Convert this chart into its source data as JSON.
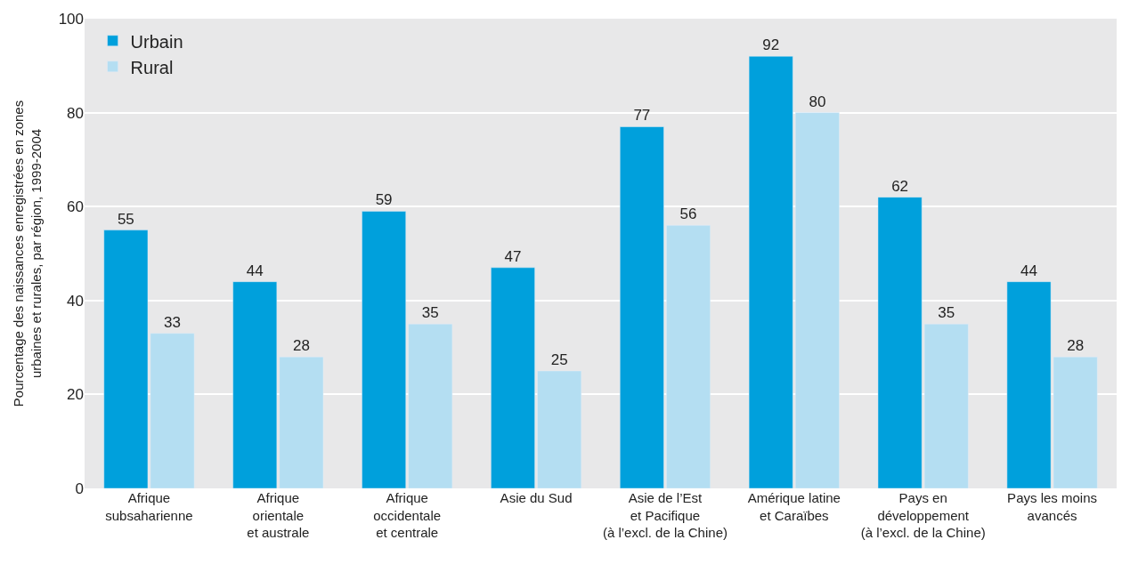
{
  "chart_data": {
    "type": "bar",
    "ylabel": "Pourcentage des naissances enregistrées en zones\nurbaines et rurales, par région, 1999-2004",
    "categories": [
      "Afrique\nsubsaharienne",
      "Afrique\norientale\net australe",
      "Afrique\noccidentale\net centrale",
      "Asie du Sud",
      "Asie de l’Est\net Pacifique\n(à l’excl. de la Chine)",
      "Amérique latine\net Caraïbes",
      "Pays en\ndéveloppement\n(à l’excl. de la Chine)",
      "Pays les moins\navancés"
    ],
    "series": [
      {
        "name": "Urbain",
        "color": "#00a0dc",
        "values": [
          55,
          44,
          59,
          47,
          77,
          92,
          62,
          44
        ]
      },
      {
        "name": "Rural",
        "color": "#b4def2",
        "values": [
          33,
          28,
          35,
          25,
          56,
          80,
          35,
          28
        ]
      }
    ],
    "ylim": [
      0,
      100
    ],
    "yticks": [
      0,
      20,
      40,
      60,
      80,
      100
    ],
    "grid": "y",
    "legend": "top left",
    "data_labels": true
  }
}
